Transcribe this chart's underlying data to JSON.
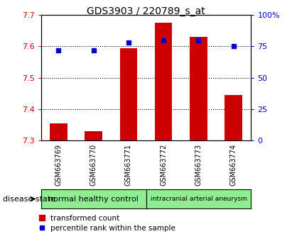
{
  "title": "GDS3903 / 220789_s_at",
  "categories": [
    "GSM663769",
    "GSM663770",
    "GSM663771",
    "GSM663772",
    "GSM663773",
    "GSM663774"
  ],
  "bar_values": [
    7.355,
    7.33,
    7.595,
    7.675,
    7.63,
    7.445
  ],
  "bar_bottom": 7.3,
  "blue_dot_percentiles": [
    72,
    72,
    78,
    80,
    80,
    75
  ],
  "ylim_left": [
    7.3,
    7.7
  ],
  "ylim_right": [
    0,
    100
  ],
  "yticks_left": [
    7.3,
    7.4,
    7.5,
    7.6,
    7.7
  ],
  "yticks_right": [
    0,
    25,
    50,
    75,
    100
  ],
  "bar_color": "#cc0000",
  "dot_color": "#0000cc",
  "group_labels": [
    "normal healthy control",
    "intracranial arterial aneurysm"
  ],
  "disease_state_label": "disease state",
  "legend_bar_label": "transformed count",
  "legend_dot_label": "percentile rank within the sample",
  "left_color": "#cc0000",
  "right_color": "#0000cc",
  "cell_bg": "#c8c8c8",
  "group_bg": "#90ee90",
  "plot_bg": "#ffffff"
}
